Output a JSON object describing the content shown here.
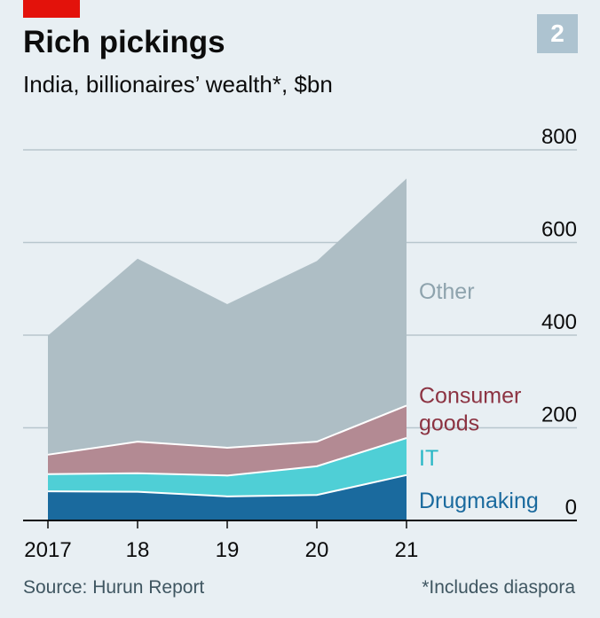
{
  "header": {
    "title": "Rich pickings",
    "subtitle": "India, billionaires’ wealth*, $bn",
    "chart_number": "2"
  },
  "footer": {
    "source": "Source: Hurun Report",
    "footnote": "*Includes diaspora"
  },
  "chart_data": {
    "type": "area",
    "stacked": true,
    "title": "Rich pickings",
    "subtitle": "India, billionaires’ wealth*, $bn",
    "x": [
      "2017",
      "18",
      "19",
      "20",
      "21"
    ],
    "y_ticks": [
      "0",
      "200",
      "400",
      "600",
      "800"
    ],
    "ylim": [
      0,
      800
    ],
    "grid": true,
    "series": [
      {
        "name": "Drugmaking",
        "label_lines": [
          "Drugmaking"
        ],
        "color": "#1a6a9e",
        "values": [
          63,
          62,
          52,
          55,
          98
        ]
      },
      {
        "name": "IT",
        "label_lines": [
          "IT"
        ],
        "color": "#4fcfd6",
        "values": [
          37,
          40,
          45,
          62,
          80
        ]
      },
      {
        "name": "Consumer goods",
        "label_lines": [
          "Consumer",
          "goods"
        ],
        "color": "#b38a93",
        "values": [
          42,
          68,
          60,
          53,
          70
        ]
      },
      {
        "name": "Other",
        "label_lines": [
          "Other"
        ],
        "color": "#aebec5",
        "values": [
          257,
          395,
          310,
          390,
          490
        ]
      }
    ],
    "label_colors": [
      "#1a6a9e",
      "#28b7c6",
      "#8c3342",
      "#8ea3ad"
    ]
  }
}
